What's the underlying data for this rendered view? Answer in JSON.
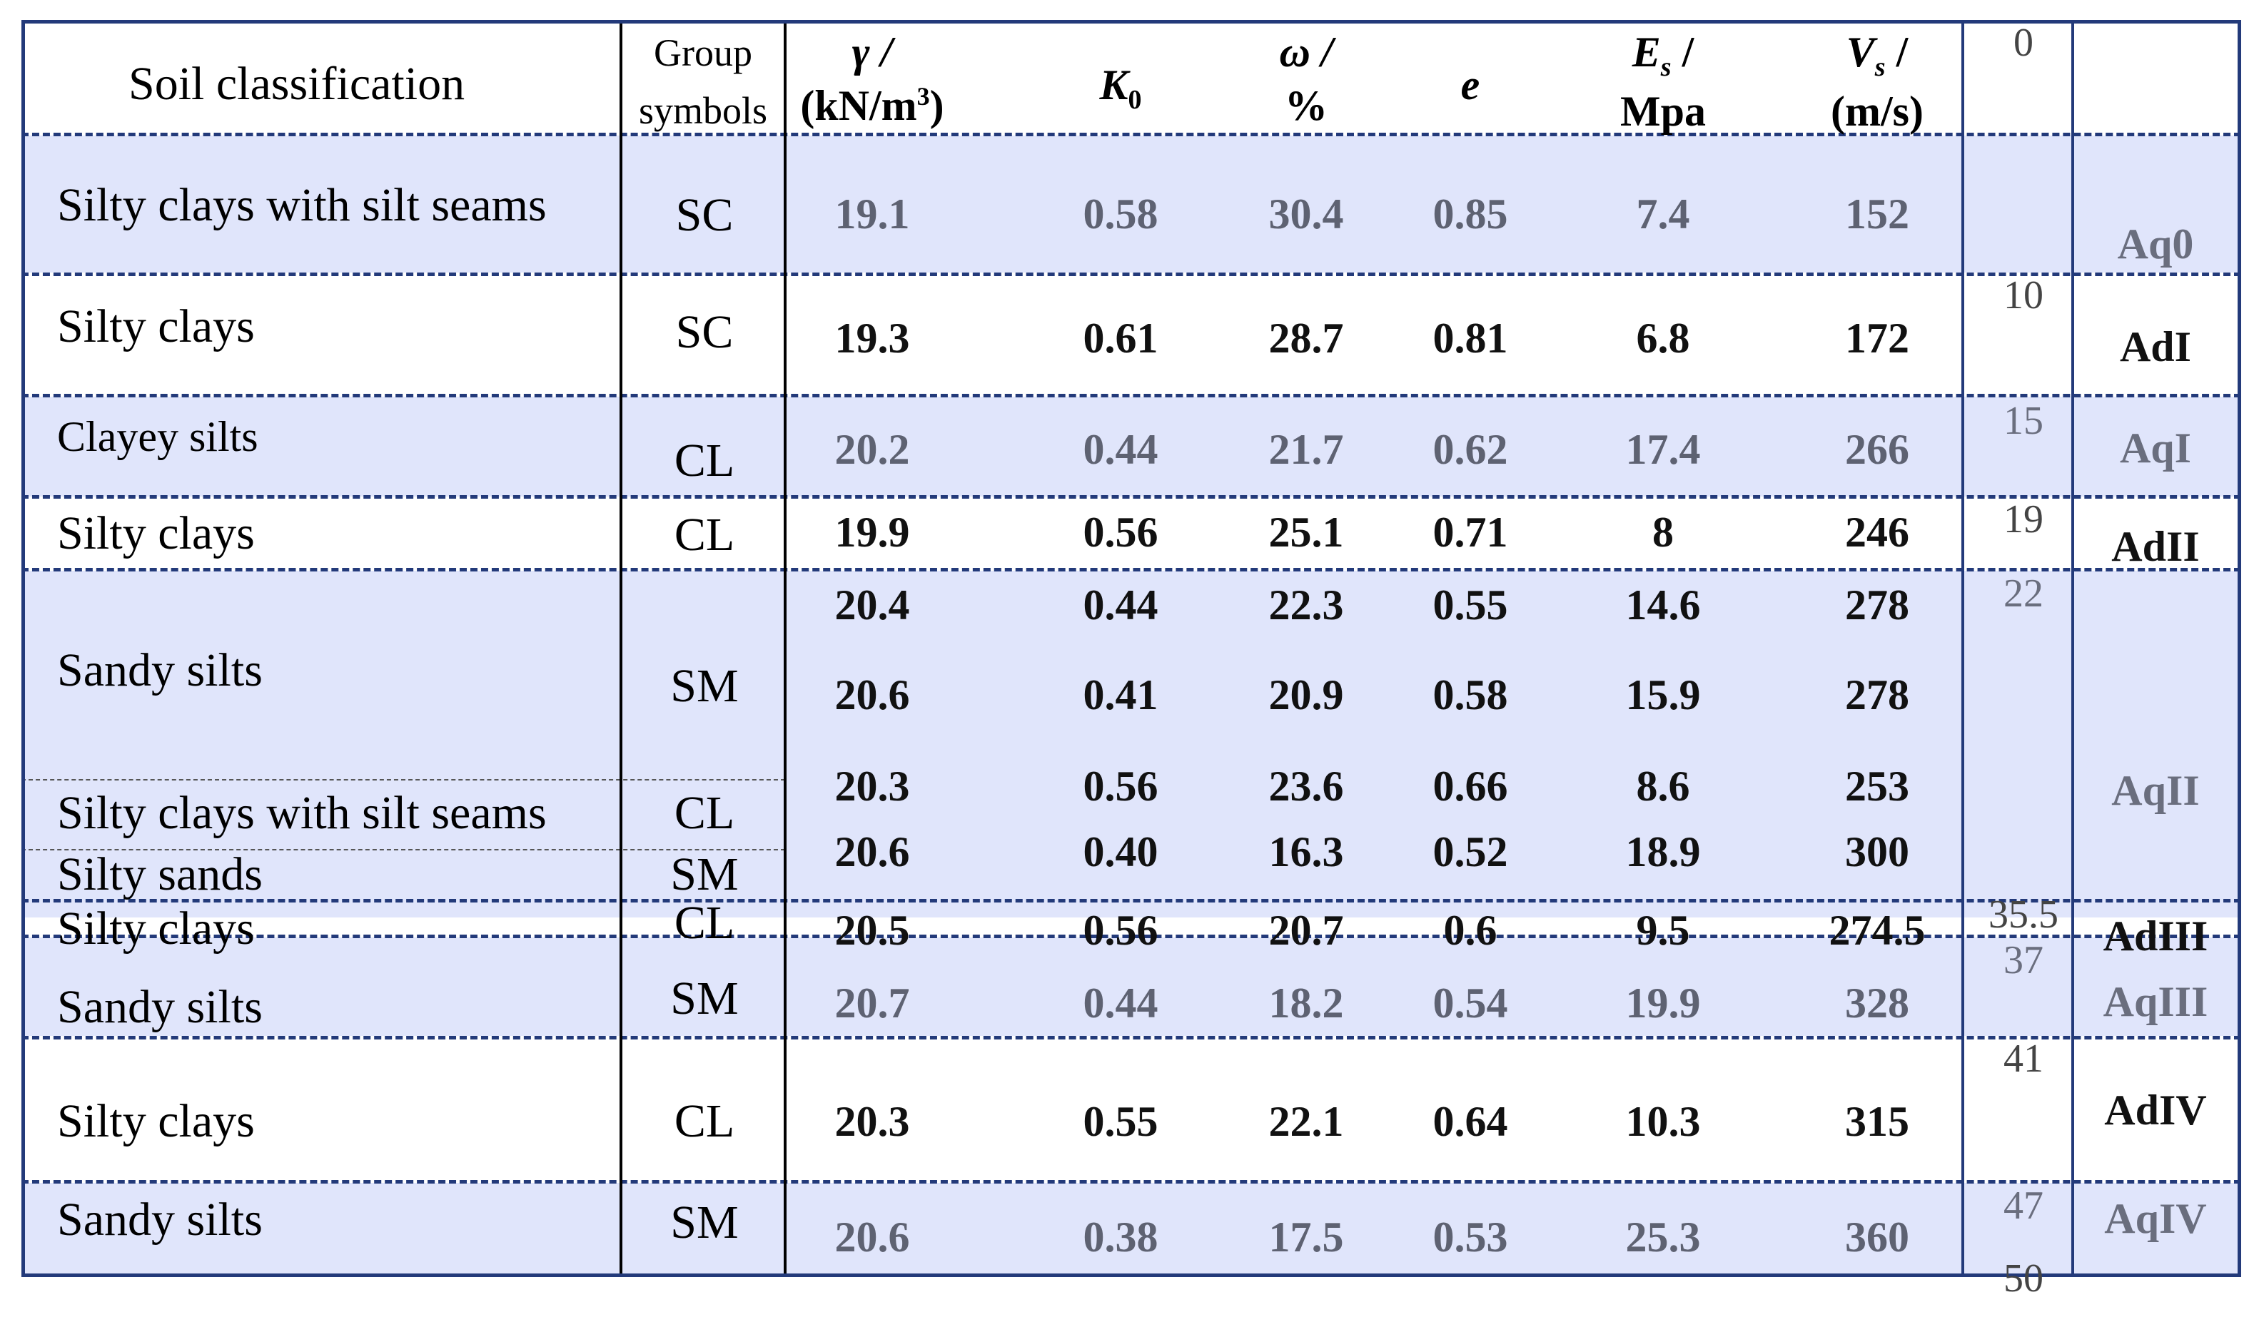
{
  "header": {
    "soil_classification": "Soil classification",
    "group_line1": "Group",
    "group_line2": "symbols",
    "gamma": "γ /",
    "gamma_unit": "(kN/m",
    "gamma_sup": "3",
    "gamma_close": ")",
    "k0": "K",
    "k0_sub": "0",
    "omega": "ω /",
    "omega_unit": "%",
    "e": "e",
    "es": "E",
    "es_sub": "s",
    "es_slash": " /",
    "es_unit": "Mpa",
    "vs": "V",
    "vs_sub": "s",
    "vs_slash": " /",
    "vs_unit": "(m/s)",
    "depth0": "0"
  },
  "rows": [
    {
      "name": "Silty clays with silt seams",
      "group": "SC",
      "gamma": "19.1",
      "k0": "0.58",
      "omega": "30.4",
      "e": "0.85",
      "es": "7.4",
      "vs": "152"
    },
    {
      "name": "Silty clays",
      "group": "SC",
      "gamma": "19.3",
      "k0": "0.61",
      "omega": "28.7",
      "e": "0.81",
      "es": "6.8",
      "vs": "172"
    },
    {
      "name": "Clayey silts",
      "group": "CL",
      "gamma": "20.2",
      "k0": "0.44",
      "omega": "21.7",
      "e": "0.62",
      "es": "17.4",
      "vs": "266"
    },
    {
      "name": "Silty clays",
      "group": "CL",
      "gamma": "19.9",
      "k0": "0.56",
      "omega": "25.1",
      "e": "0.71",
      "es": "8",
      "vs": "246"
    },
    {
      "name": "Sandy silts",
      "group": "SM",
      "gamma": "20.4",
      "k0": "0.44",
      "omega": "22.3",
      "e": "0.55",
      "es": "14.6",
      "vs": "278"
    },
    {
      "name": "",
      "group": "",
      "gamma": "20.6",
      "k0": "0.41",
      "omega": "20.9",
      "e": "0.58",
      "es": "15.9",
      "vs": "278"
    },
    {
      "name": "Silty clays with silt seams",
      "group": "CL",
      "gamma": "20.3",
      "k0": "0.56",
      "omega": "23.6",
      "e": "0.66",
      "es": "8.6",
      "vs": "253"
    },
    {
      "name": "Silty sands",
      "group": "SM",
      "gamma": "20.6",
      "k0": "0.40",
      "omega": "16.3",
      "e": "0.52",
      "es": "18.9",
      "vs": "300"
    },
    {
      "name": "Silty clays",
      "group": "CL",
      "gamma": "20.5",
      "k0": "0.56",
      "omega": "20.7",
      "e": "0.6",
      "es": "9.5",
      "vs": "274.5"
    },
    {
      "name": "Sandy silts",
      "group": "SM",
      "gamma": "20.7",
      "k0": "0.44",
      "omega": "18.2",
      "e": "0.54",
      "es": "19.9",
      "vs": "328"
    },
    {
      "name": "Silty clays",
      "group": "CL",
      "gamma": "20.3",
      "k0": "0.55",
      "omega": "22.1",
      "e": "0.64",
      "es": "10.3",
      "vs": "315"
    },
    {
      "name": "Sandy silts",
      "group": "SM",
      "gamma": "20.6",
      "k0": "0.38",
      "omega": "17.5",
      "e": "0.53",
      "es": "25.3",
      "vs": "360"
    }
  ],
  "depths": [
    "0",
    "10",
    "15",
    "19",
    "22",
    "35.5",
    "37",
    "41",
    "47",
    "50"
  ],
  "units": [
    "Aq0",
    "AdI",
    "AqI",
    "AdII",
    "AqII",
    "AdIII",
    "AqIII",
    "AdIV",
    "AqIV"
  ],
  "colors": {
    "shade": "#e0e5fb",
    "border": "#233a7a",
    "gray_text": "#5e6272"
  }
}
